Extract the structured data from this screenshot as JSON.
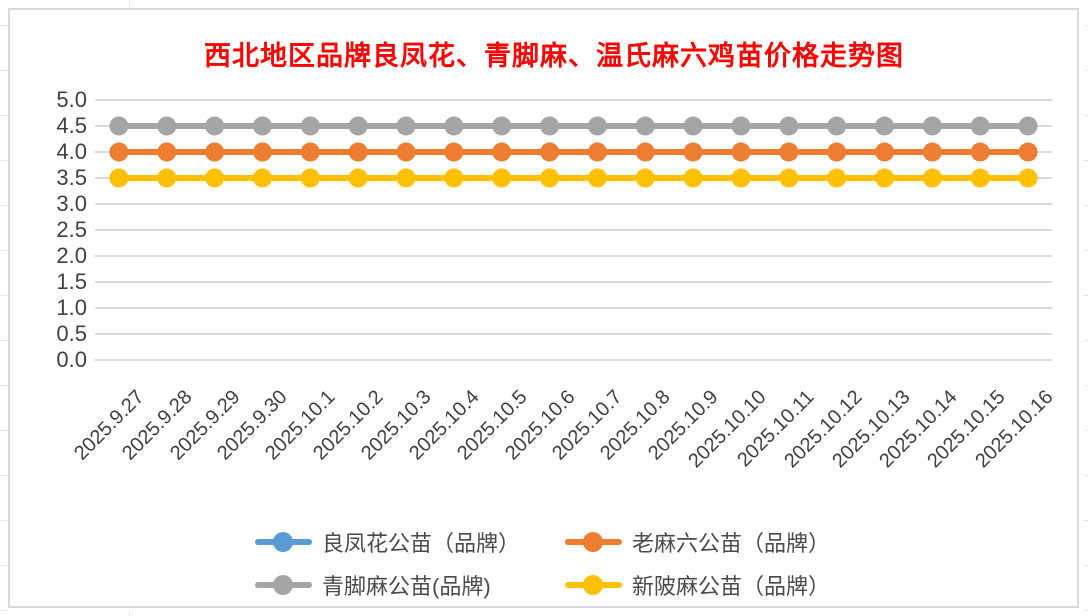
{
  "chart_data": {
    "type": "line",
    "title": "西北地区品牌良凤花、青脚麻、温氏麻六鸡苗价格走势图",
    "title_color": "#FF0000",
    "xlabel": "",
    "ylabel": "",
    "ylim": [
      0.0,
      5.0
    ],
    "ytick_step": 0.5,
    "ytick_labels": [
      "5.0",
      "4.5",
      "4.0",
      "3.5",
      "3.0",
      "2.5",
      "2.0",
      "1.5",
      "1.0",
      "0.5",
      "0.0"
    ],
    "grid": "horizontal",
    "legend_position": "bottom",
    "legend_rows": [
      [
        0,
        1
      ],
      [
        2,
        3
      ]
    ],
    "categories": [
      "2025.9.27",
      "2025.9.28",
      "2025.9.29",
      "2025.9.30",
      "2025.10.1",
      "2025.10.2",
      "2025.10.3",
      "2025.10.4",
      "2025.10.5",
      "2025.10.6",
      "2025.10.7",
      "2025.10.8",
      "2025.10.9",
      "2025.10.10",
      "2025.10.11",
      "2025.10.12",
      "2025.10.13",
      "2025.10.14",
      "2025.10.15",
      "2025.10.16"
    ],
    "series": [
      {
        "name": "良凤花公苗（品牌）",
        "color": "#5B9BD5",
        "line_visible_in_plot": false,
        "values": []
      },
      {
        "name": "老麻六公苗（品牌）",
        "color": "#ED7D31",
        "line_visible_in_plot": true,
        "values": [
          4.0,
          4.0,
          4.0,
          4.0,
          4.0,
          4.0,
          4.0,
          4.0,
          4.0,
          4.0,
          4.0,
          4.0,
          4.0,
          4.0,
          4.0,
          4.0,
          4.0,
          4.0,
          4.0,
          4.0
        ]
      },
      {
        "name": "青脚麻公苗(品牌)",
        "color": "#A5A5A5",
        "line_visible_in_plot": true,
        "values": [
          4.5,
          4.5,
          4.5,
          4.5,
          4.5,
          4.5,
          4.5,
          4.5,
          4.5,
          4.5,
          4.5,
          4.5,
          4.5,
          4.5,
          4.5,
          4.5,
          4.5,
          4.5,
          4.5,
          4.5
        ]
      },
      {
        "name": "新陂麻公苗（品牌）",
        "color": "#FFC000",
        "line_visible_in_plot": true,
        "values": [
          3.5,
          3.5,
          3.5,
          3.5,
          3.5,
          3.5,
          3.5,
          3.5,
          3.5,
          3.5,
          3.5,
          3.5,
          3.5,
          3.5,
          3.5,
          3.5,
          3.5,
          3.5,
          3.5,
          3.5
        ]
      }
    ]
  },
  "styles": {
    "axis_text_color": "#404040",
    "legend_text_color": "#4a4a4a",
    "gridline_color": "#D9D9D9",
    "frame_border_color": "#D9D9D9",
    "background_color": "#FFFFFF"
  }
}
